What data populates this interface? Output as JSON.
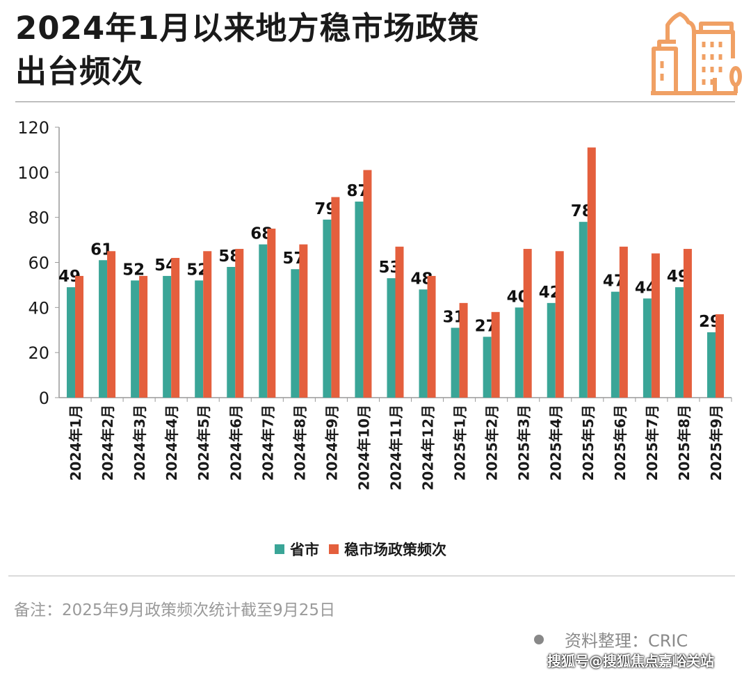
{
  "title_line1": "2024年1月以来地方稳市场政策",
  "title_line2": "出台频次",
  "icon": "city-buildings-icon",
  "colors": {
    "teal": "#3aa597",
    "orange": "#e45f3d",
    "logo": "#f0a064"
  },
  "chart_data": {
    "type": "bar",
    "categories": [
      "2024年1月",
      "2024年2月",
      "2024年3月",
      "2024年4月",
      "2024年5月",
      "2024年6月",
      "2024年7月",
      "2024年8月",
      "2024年9月",
      "2024年10月",
      "2024年11月",
      "2024年12月",
      "2025年1月",
      "2025年2月",
      "2025年3月",
      "2025年4月",
      "2025年5月",
      "2025年6月",
      "2025年7月",
      "2025年8月",
      "2025年9月"
    ],
    "series": [
      {
        "name": "省市",
        "color": "#3aa597",
        "values": [
          49,
          61,
          52,
          54,
          52,
          58,
          68,
          57,
          79,
          87,
          53,
          48,
          31,
          27,
          40,
          42,
          78,
          47,
          44,
          49,
          29
        ],
        "labeled": true
      },
      {
        "name": "稳市场政策频次",
        "color": "#e45f3d",
        "values": [
          54,
          65,
          54,
          62,
          65,
          66,
          75,
          68,
          89,
          101,
          67,
          54,
          42,
          38,
          66,
          65,
          111,
          67,
          64,
          66,
          37
        ],
        "labeled": false
      }
    ],
    "ylim": [
      0,
      120
    ],
    "yticks": [
      "0",
      "20",
      "40",
      "60",
      "80",
      "100",
      "120"
    ],
    "grid": false,
    "legend": "bottom"
  },
  "legend": {
    "teal": "省市",
    "orange": "稳市场政策频次"
  },
  "note": "备注：2025年9月政策频次统计截至9月25日",
  "source": "资料整理：CRIC",
  "watermark": "搜狐号@搜狐焦点嘉峪关站"
}
